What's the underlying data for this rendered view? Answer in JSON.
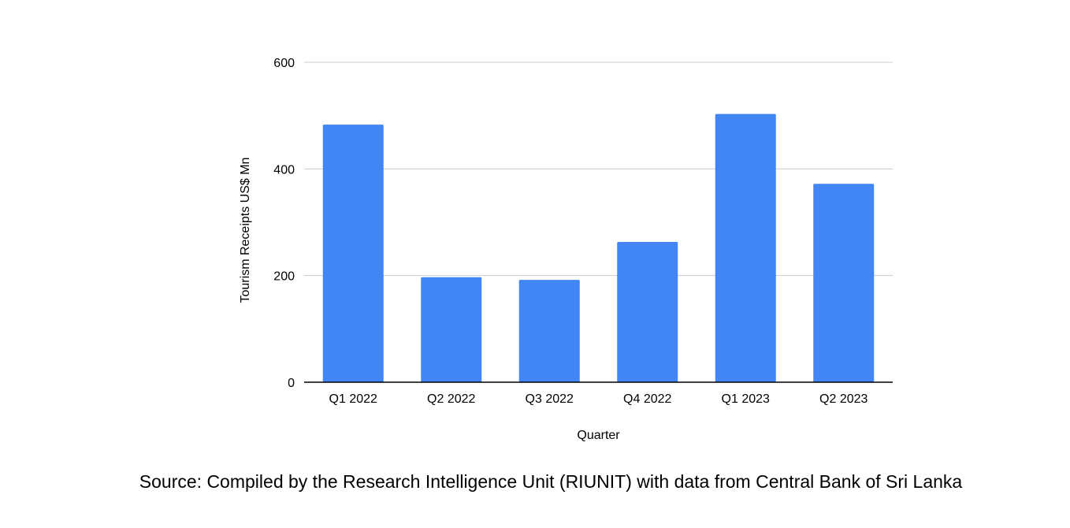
{
  "chart_data": {
    "type": "bar",
    "title": "",
    "xlabel": "Quarter",
    "ylabel": "Tourism Receipts US$ Mn",
    "categories": [
      "Q1 2022",
      "Q2 2022",
      "Q3 2022",
      "Q4 2022",
      "Q1 2023",
      "Q2 2023"
    ],
    "values": [
      483,
      197,
      192,
      263,
      503,
      372
    ],
    "ylim": [
      0,
      600
    ],
    "yticks": [
      0,
      200,
      400,
      600
    ],
    "grid": true,
    "legend": "none",
    "bar_color": "#4285f4",
    "gridline_color": "#cccccc",
    "axis_color": "#000000"
  },
  "source": {
    "text": "Source: Compiled by the Research Intelligence Unit (RIUNIT) with data from Central Bank of Sri Lanka"
  }
}
